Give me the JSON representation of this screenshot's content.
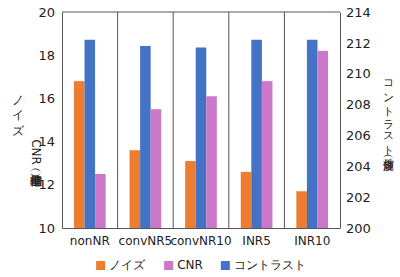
{
  "chart_data": {
    "type": "bar",
    "categories": [
      "nonNR",
      "convNR5",
      "convNR10",
      "INR5",
      "INR10"
    ],
    "series": [
      {
        "name": "ノイズ",
        "color": "#ed7d31",
        "axis": "y",
        "values": [
          16.8,
          13.6,
          13.1,
          12.6,
          11.7
        ]
      },
      {
        "name": "CNR",
        "color": "#cc78c8",
        "axis": "y",
        "values": [
          12.5,
          15.5,
          16.1,
          16.8,
          18.2
        ]
      },
      {
        "name": "コントラスト",
        "color": "#4472c4",
        "axis": "y2",
        "values": [
          212.2,
          211.8,
          211.7,
          212.2,
          212.2
        ]
      }
    ],
    "y_label": [
      "ノイズ",
      "CNR（標準偏差）"
    ],
    "y2_label": "コントラスト（輝度値）",
    "ylim": [
      10,
      20
    ],
    "yticks": [
      10,
      12,
      14,
      16,
      18,
      20
    ],
    "y2lim": [
      200,
      214
    ],
    "y2ticks": [
      200,
      202,
      204,
      206,
      208,
      210,
      212,
      214
    ],
    "grid": false,
    "legend": "bottom"
  }
}
